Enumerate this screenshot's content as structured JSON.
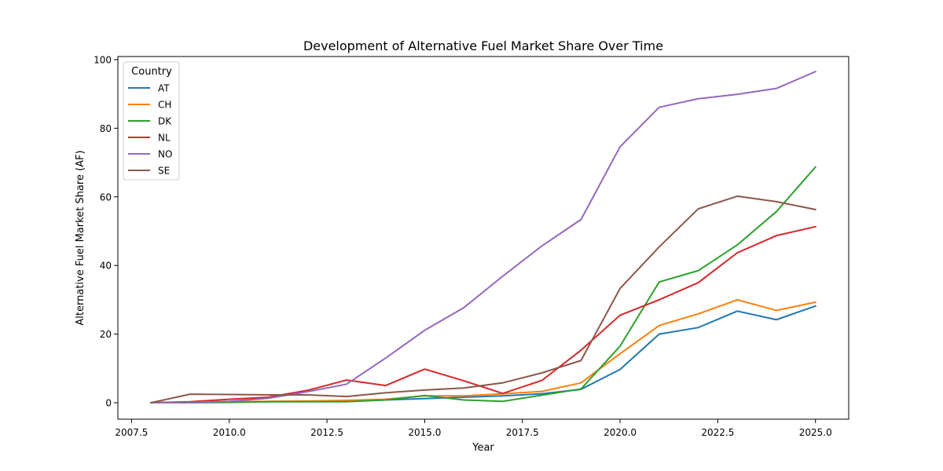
{
  "chart_data": {
    "type": "line",
    "title": "Development of Alternative Fuel Market Share Over Time",
    "xlabel": "Year",
    "ylabel": "Alternative Fuel Market Share (AF)",
    "xlim": [
      2007.15,
      2025.85
    ],
    "ylim": [
      -4.8,
      100.9
    ],
    "xticks": [
      2007.5,
      2010.0,
      2012.5,
      2015.0,
      2017.5,
      2020.0,
      2022.5,
      2025.0
    ],
    "xtick_labels": [
      "2007.5",
      "2010.0",
      "2012.5",
      "2015.0",
      "2017.5",
      "2020.0",
      "2022.5",
      "2025.0"
    ],
    "yticks": [
      0,
      20,
      40,
      60,
      80,
      100
    ],
    "ytick_labels": [
      "0",
      "20",
      "40",
      "60",
      "80",
      "100"
    ],
    "grid": false,
    "legend": {
      "title": "Country",
      "position": "top-left"
    },
    "x": [
      2008,
      2009,
      2010,
      2011,
      2012,
      2013,
      2014,
      2015,
      2016,
      2017,
      2018,
      2019,
      2020,
      2021,
      2022,
      2023,
      2024,
      2025
    ],
    "series": [
      {
        "name": "AT",
        "color": "#1f77b4",
        "values": [
          0.0,
          0.1,
          0.2,
          0.3,
          0.4,
          0.5,
          0.8,
          1.2,
          1.6,
          2.0,
          2.6,
          3.9,
          9.7,
          20.0,
          21.9,
          26.7,
          24.2,
          28.2
        ]
      },
      {
        "name": "CH",
        "color": "#ff7f0e",
        "values": [
          0.0,
          0.2,
          0.3,
          0.4,
          0.5,
          0.7,
          1.0,
          2.0,
          2.0,
          2.6,
          3.3,
          5.8,
          14.3,
          22.5,
          25.9,
          30.0,
          26.9,
          29.3
        ]
      },
      {
        "name": "DK",
        "color": "#2ca02c",
        "values": [
          0.0,
          0.0,
          0.1,
          0.3,
          0.3,
          0.3,
          0.8,
          2.1,
          0.8,
          0.4,
          2.2,
          4.0,
          16.5,
          35.2,
          38.5,
          46.0,
          55.7,
          68.7
        ]
      },
      {
        "name": "NL",
        "color": "#d62728",
        "values": [
          0.0,
          0.3,
          1.0,
          1.6,
          3.6,
          6.6,
          5.0,
          9.8,
          6.4,
          2.7,
          6.5,
          15.3,
          25.5,
          30.0,
          35.0,
          43.7,
          48.7,
          51.3
        ]
      },
      {
        "name": "NO",
        "color": "#9467bd",
        "values": [
          0.0,
          0.1,
          0.4,
          1.3,
          3.2,
          5.4,
          13.0,
          21.1,
          27.7,
          36.9,
          45.7,
          53.4,
          74.6,
          86.1,
          88.6,
          89.9,
          91.6,
          96.5
        ]
      },
      {
        "name": "SE",
        "color": "#8c564b",
        "values": [
          0.0,
          2.5,
          2.4,
          2.3,
          2.3,
          1.8,
          2.9,
          3.7,
          4.3,
          5.8,
          8.7,
          12.3,
          33.3,
          45.4,
          56.5,
          60.2,
          58.6,
          56.3
        ]
      }
    ]
  }
}
